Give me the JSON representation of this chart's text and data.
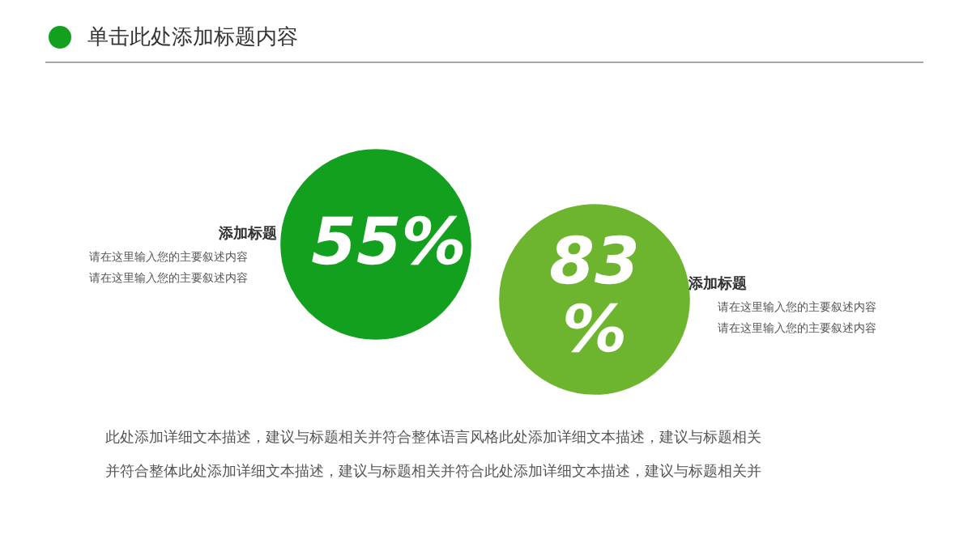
{
  "chart_data": {
    "type": "other",
    "title": "单击此处添加标题内容",
    "categories": [
      "添加标题",
      "添加标题"
    ],
    "values": [
      55,
      83
    ],
    "value_labels": [
      "55%",
      "83%"
    ],
    "colors": [
      "#13a01f",
      "#6db52e"
    ],
    "annotations": [
      "请在这里输入您的主要叙述内容",
      "请在这里输入您的主要叙述内容",
      "请在这里输入您的主要叙述内容",
      "请在这里输入您的主要叙述内容",
      "此处添加详细文本描述，建议与标题相关并符合整体语言风格此处添加详细文本描述，建议与标题相关",
      "并符合整体此处添加详细文本描述，建议与标题相关并符合此处添加详细文本描述，建议与标题相关并"
    ]
  }
}
